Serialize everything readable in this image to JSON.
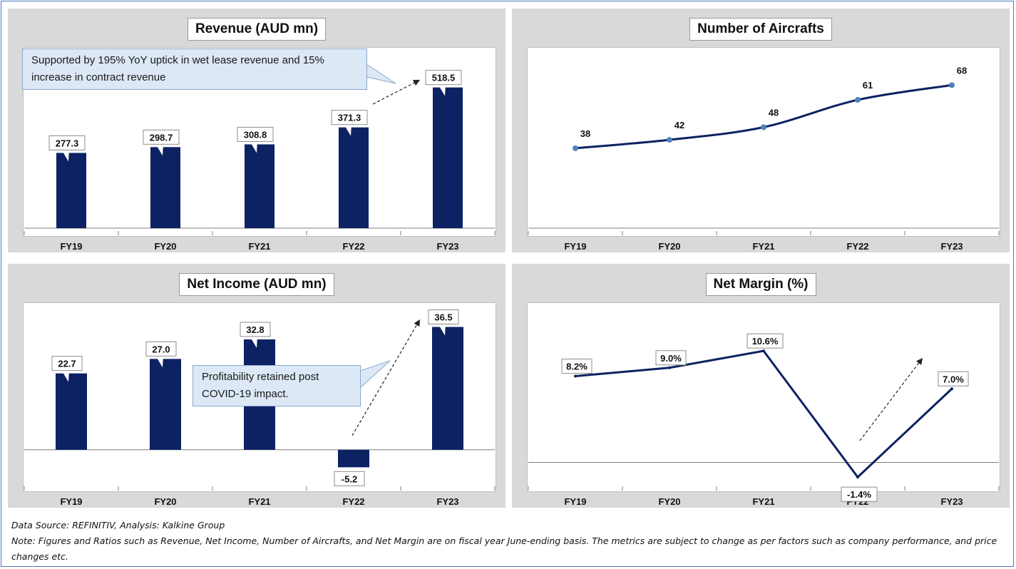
{
  "charts": {
    "revenue": {
      "title": "Revenue (AUD mn)"
    },
    "aircraft": {
      "title": "Number of Aircrafts"
    },
    "net_income": {
      "title": "Net Income (AUD mn)"
    },
    "net_margin": {
      "title": "Net Margin (%)"
    }
  },
  "callouts": {
    "revenue": "Supported by 195% YoY uptick in wet lease revenue and 15% increase in contract revenue",
    "net_income": "Profitability retained post COVID-19 impact."
  },
  "footer": {
    "source": "Data Source: REFINITIV, Analysis: Kalkine Group",
    "note": "Note: Figures and Ratios such as Revenue, Net Income, Number of Aircrafts, and Net Margin are on fiscal year June-ending basis. The metrics are subject to change as per factors such as company performance, and price changes etc."
  },
  "colors": {
    "bar": "#0d2263",
    "line": "#0d2263",
    "marker": "#4f81bd",
    "callout_bg": "#dce8f5",
    "frame": "#4a78c2"
  },
  "chart_data": [
    {
      "type": "bar",
      "title": "Revenue (AUD mn)",
      "categories": [
        "FY19",
        "FY20",
        "FY21",
        "FY22",
        "FY23"
      ],
      "values": [
        277.3,
        298.7,
        308.8,
        371.3,
        518.5
      ],
      "labels": [
        "277.3",
        "298.7",
        "308.8",
        "371.3",
        "518.5"
      ],
      "ylim": [
        0,
        620
      ],
      "grid": false
    },
    {
      "type": "line",
      "title": "Number of Aircrafts",
      "categories": [
        "FY19",
        "FY20",
        "FY21",
        "FY22",
        "FY23"
      ],
      "values": [
        38,
        42,
        48,
        61,
        68
      ],
      "labels": [
        "38",
        "42",
        "48",
        "61",
        "68"
      ],
      "ylim": [
        0,
        80
      ],
      "grid": false
    },
    {
      "type": "bar",
      "title": "Net Income (AUD mn)",
      "categories": [
        "FY19",
        "FY20",
        "FY21",
        "FY22",
        "FY23"
      ],
      "values": [
        22.7,
        27.0,
        32.8,
        -5.2,
        36.5
      ],
      "labels": [
        "22.7",
        "27.0",
        "32.8",
        "-5.2",
        "36.5"
      ],
      "ylim": [
        -10,
        40
      ],
      "grid": false
    },
    {
      "type": "line",
      "title": "Net Margin (%)",
      "categories": [
        "FY19",
        "FY20",
        "FY21",
        "FY22",
        "FY23"
      ],
      "values": [
        8.2,
        9.0,
        10.6,
        -1.4,
        7.0
      ],
      "labels": [
        "8.2%",
        "9.0%",
        "10.6%",
        "-1.4%",
        "7.0%"
      ],
      "ylim": [
        -2,
        14
      ],
      "grid": false
    }
  ]
}
